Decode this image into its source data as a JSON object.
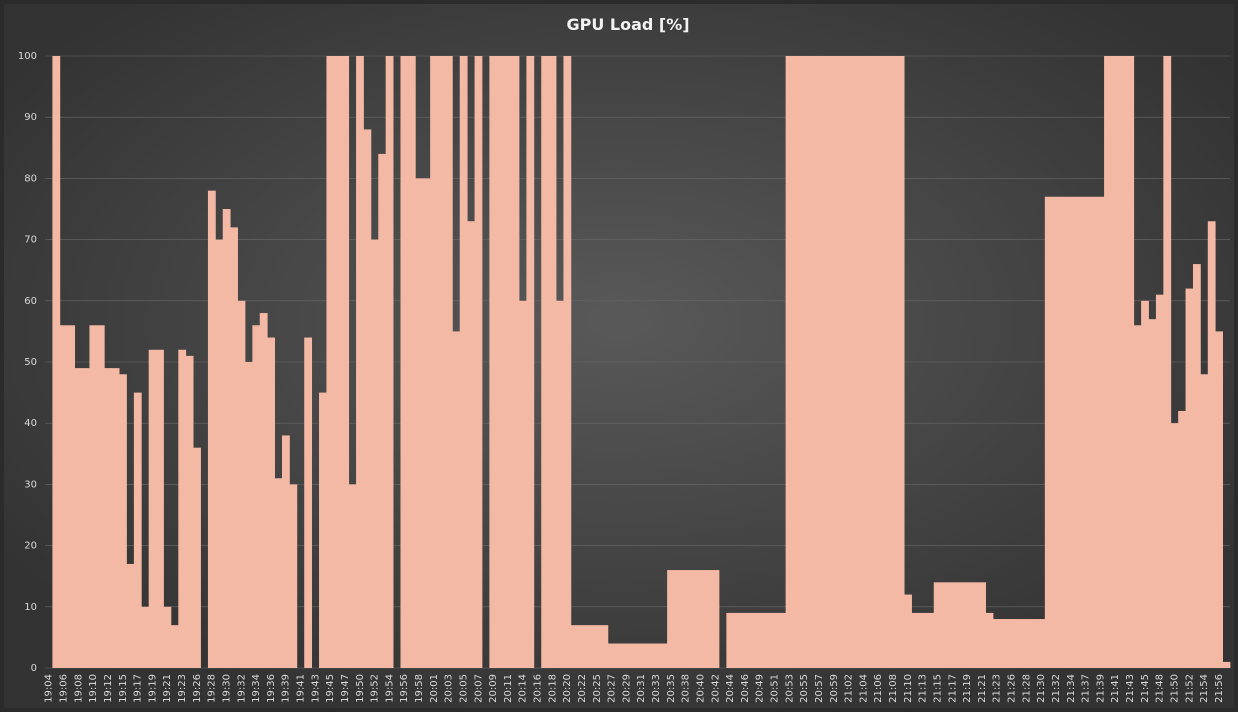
{
  "chart_data": {
    "type": "bar",
    "title": "GPU Load [%]",
    "color": "#f4b9a5",
    "grid": true,
    "ylim": [
      0,
      100
    ],
    "yticks": [
      0,
      10,
      20,
      30,
      40,
      50,
      60,
      70,
      80,
      90,
      100
    ],
    "categories": [
      "19:04",
      null,
      "19:06",
      null,
      "19:08",
      null,
      "19:10",
      null,
      "19:12",
      null,
      "19:15",
      null,
      "19:17",
      null,
      "19:19",
      null,
      "19:21",
      null,
      "19:23",
      null,
      "19:26",
      null,
      "19:28",
      null,
      "19:30",
      null,
      "19:32",
      null,
      "19:34",
      null,
      "19:36",
      null,
      "19:39",
      null,
      "19:41",
      null,
      "19:43",
      null,
      "19:45",
      null,
      "19:47",
      null,
      "19:50",
      null,
      "19:52",
      null,
      "19:54",
      null,
      "19:56",
      null,
      "19:58",
      null,
      "20:01",
      null,
      "20:03",
      null,
      "20:05",
      null,
      "20:07",
      null,
      "20:09",
      null,
      "20:11",
      null,
      "20:14",
      null,
      "20:16",
      null,
      "20:18",
      null,
      "20:20",
      null,
      "20:22",
      null,
      "20:25",
      null,
      "20:27",
      null,
      "20:29",
      null,
      "20:31",
      null,
      "20:33",
      null,
      "20:35",
      null,
      "20:38",
      null,
      "20:40",
      null,
      "20:42",
      null,
      "20:44",
      null,
      "20:46",
      null,
      "20:49",
      null,
      "20:51",
      null,
      "20:53",
      null,
      "20:55",
      null,
      "20:57",
      null,
      "20:59",
      null,
      "21:02",
      null,
      "21:04",
      null,
      "21:06",
      null,
      "21:08",
      null,
      "21:10",
      null,
      "21:13",
      null,
      "21:15",
      null,
      "21:17",
      null,
      "21:19",
      null,
      "21:21",
      null,
      "21:23",
      null,
      "21:26",
      null,
      "21:28",
      null,
      "21:30",
      null,
      "21:32",
      null,
      "21:34",
      null,
      "21:37",
      null,
      "21:39",
      null,
      "21:41",
      null,
      "21:43",
      null,
      "21:45",
      null,
      "21:48",
      null,
      "21:50",
      null,
      "21:52",
      null,
      "21:54",
      null,
      "21:56",
      null
    ],
    "values": [
      0,
      100,
      56,
      56,
      49,
      49,
      56,
      56,
      49,
      49,
      48,
      17,
      45,
      10,
      52,
      52,
      10,
      7,
      52,
      51,
      36,
      0,
      78,
      70,
      75,
      72,
      60,
      50,
      56,
      58,
      54,
      31,
      38,
      30,
      0,
      54,
      0,
      45,
      100,
      100,
      100,
      30,
      100,
      88,
      70,
      84,
      100,
      0,
      100,
      100,
      80,
      80,
      100,
      100,
      100,
      55,
      100,
      73,
      100,
      0,
      100,
      100,
      100,
      100,
      60,
      100,
      0,
      100,
      100,
      60,
      100,
      7,
      7,
      7,
      7,
      7,
      4,
      4,
      4,
      4,
      4,
      4,
      4,
      4,
      16,
      16,
      16,
      16,
      16,
      16,
      16,
      0,
      9,
      9,
      9,
      9,
      9,
      9,
      9,
      9,
      100,
      100,
      100,
      100,
      100,
      100,
      100,
      100,
      100,
      100,
      100,
      100,
      100,
      100,
      100,
      100,
      12,
      9,
      9,
      9,
      14,
      14,
      14,
      14,
      14,
      14,
      14,
      9,
      8,
      8,
      8,
      8,
      8,
      8,
      8,
      77,
      77,
      77,
      77,
      77,
      77,
      77,
      77,
      100,
      100,
      100,
      100,
      56,
      60,
      57,
      61,
      100,
      40,
      42,
      62,
      66,
      48,
      73,
      55,
      1
    ]
  }
}
